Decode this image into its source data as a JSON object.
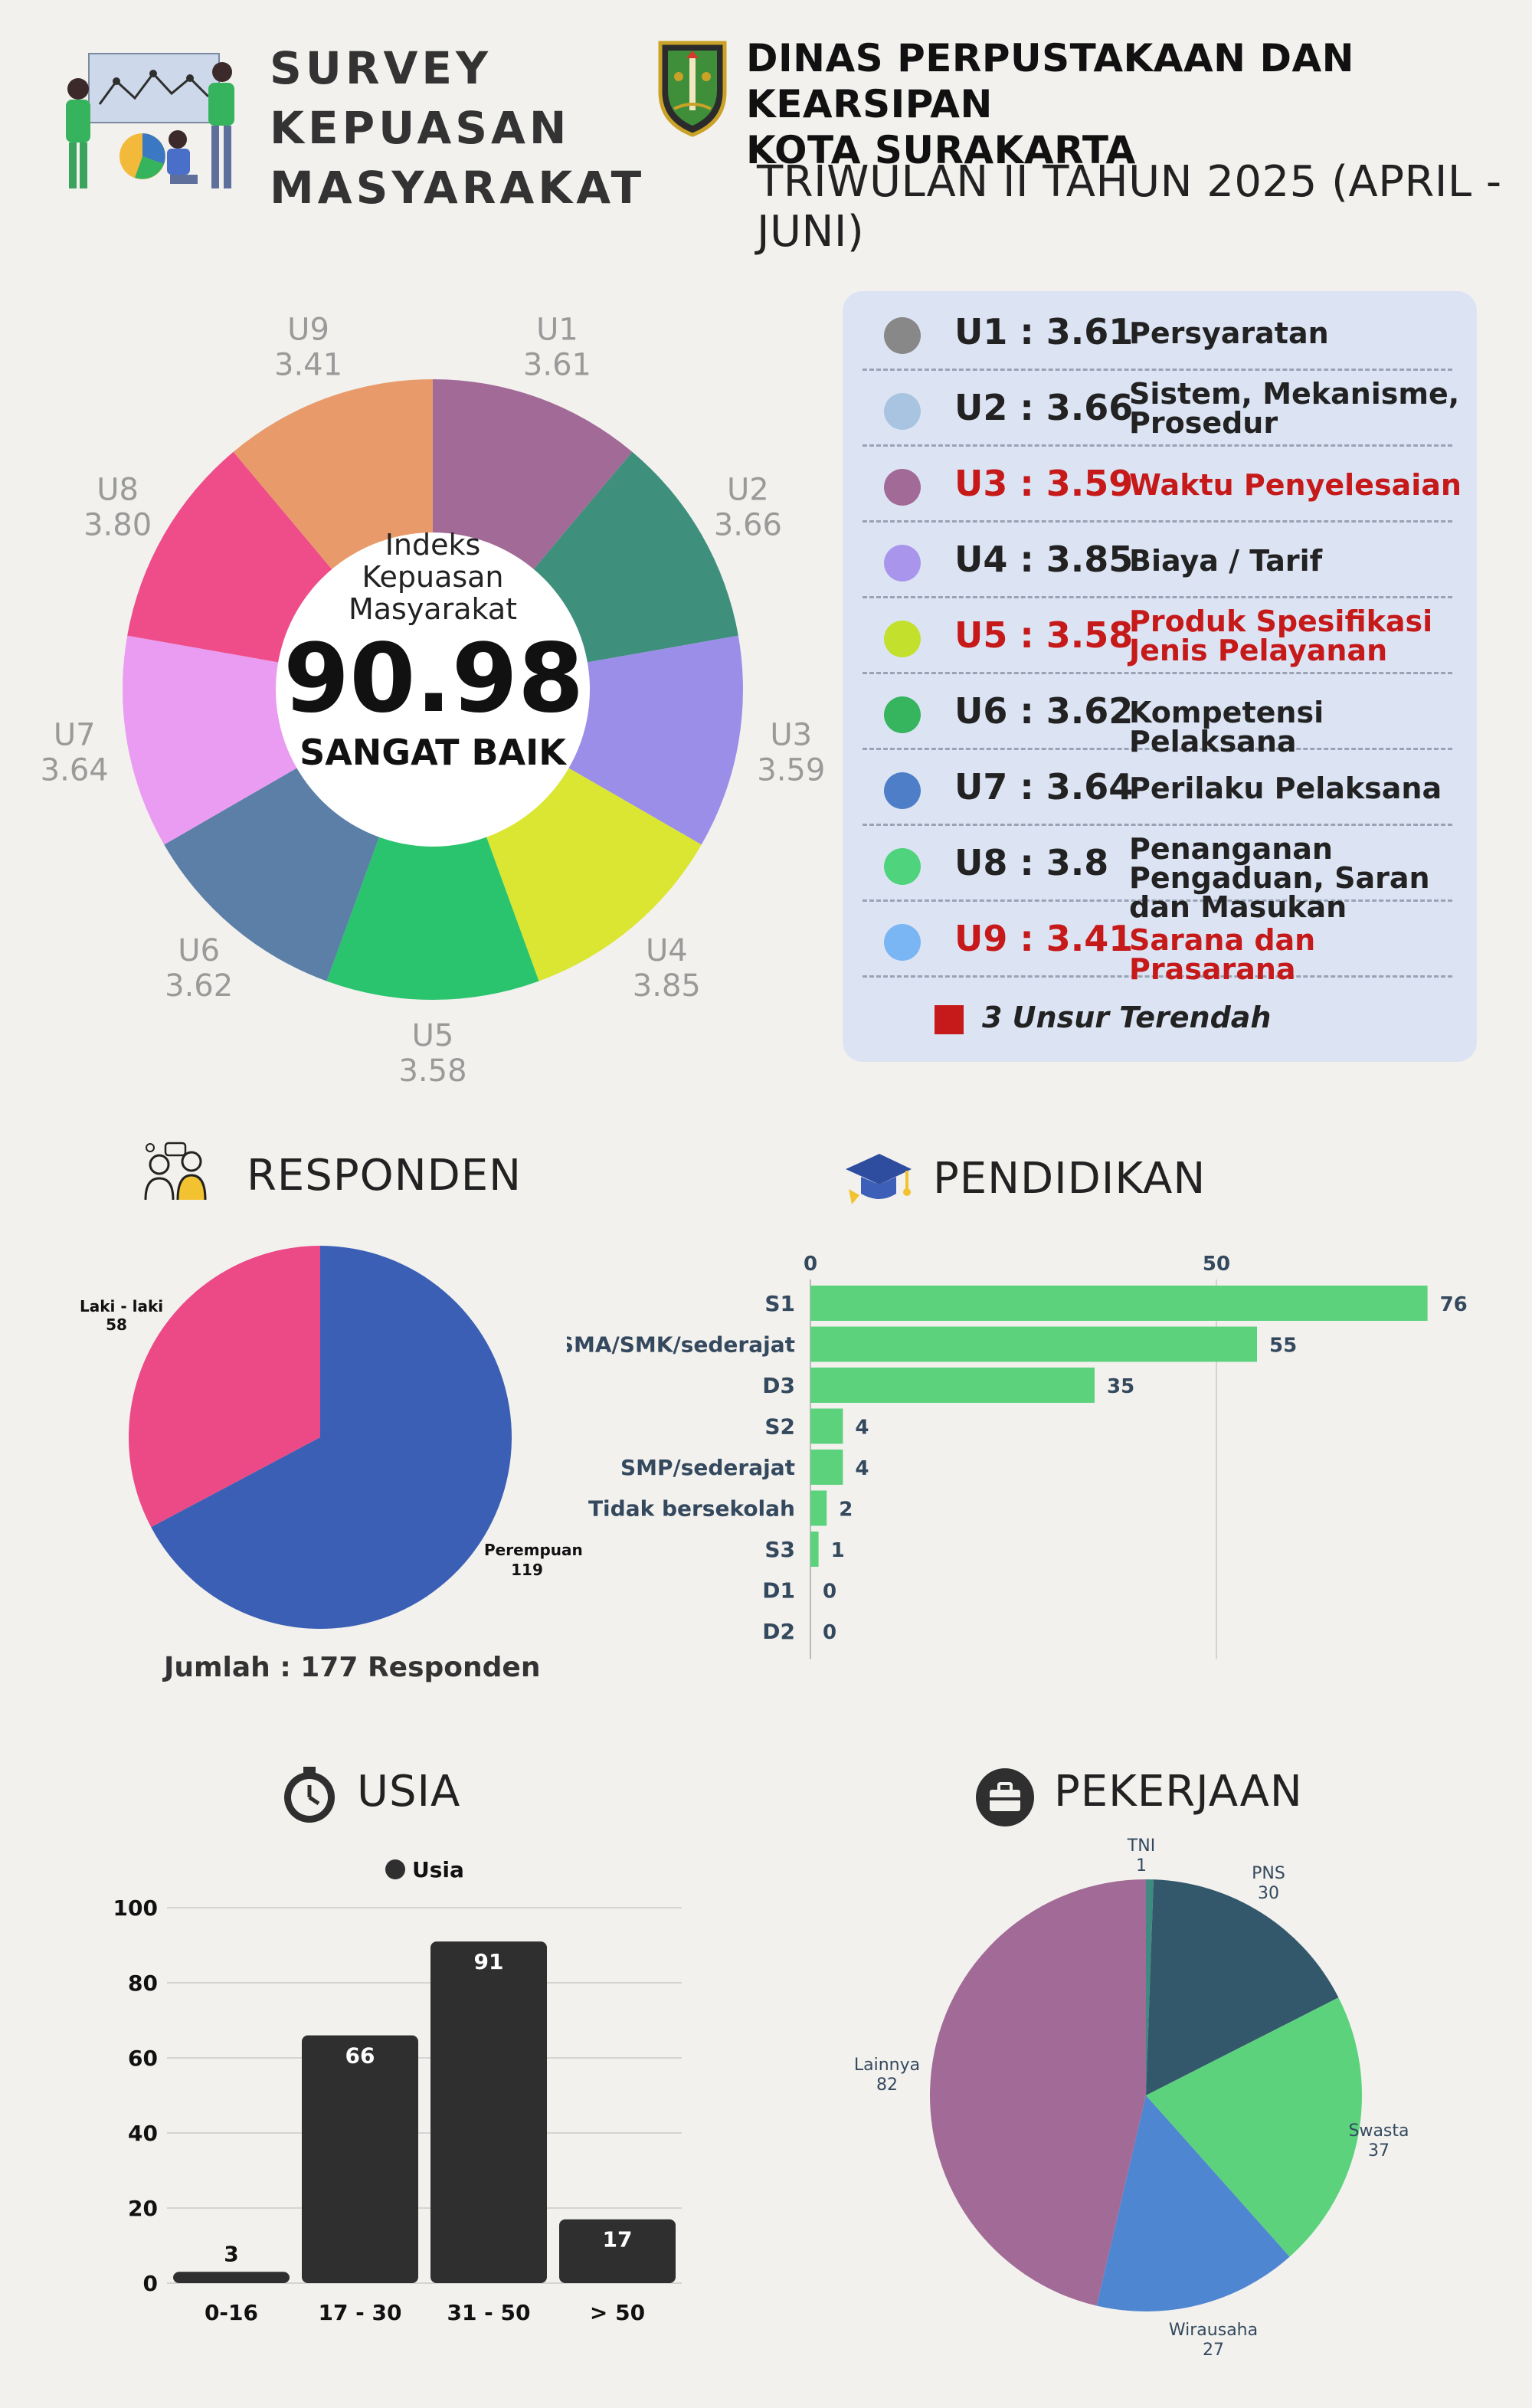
{
  "header": {
    "title_lines": [
      "SURVEY",
      "KEPUASAN",
      "MASYARAKAT"
    ],
    "agency_lines": [
      "DINAS PERPUSTAKAAN DAN KEARSIPAN",
      "KOTA SURAKARTA"
    ],
    "period": "TRIWULAN II TAHUN 2025 (APRIL - JUNI)"
  },
  "ikm": {
    "label_lines": [
      "Indeks",
      "Kepuasan",
      "Masyarakat"
    ],
    "value": "90.98",
    "grade": "SANGAT BAIK"
  },
  "elements": [
    {
      "code": "U1",
      "value": "3.61",
      "label_code": "U1 : 3.61",
      "desc": "Persyaratan",
      "color": "#a26b97",
      "legend_color": "#888888",
      "low": false
    },
    {
      "code": "U2",
      "value": "3.66",
      "label_code": "U2 : 3.66",
      "desc": "Sistem, Mekanisme, Prosedur",
      "color": "#3e8f7c",
      "legend_color": "#a9c4e0",
      "low": false
    },
    {
      "code": "U3",
      "value": "3.59",
      "label_code": "U3 : 3.59",
      "desc": "Waktu Penyelesaian",
      "color": "#9b8ee8",
      "legend_color": "#a26b97",
      "low": true
    },
    {
      "code": "U4",
      "value": "3.85",
      "label_code": "U4 : 3.85",
      "desc": "Biaya / Tarif",
      "color": "#dbe632",
      "legend_color": "#a996ec",
      "low": false
    },
    {
      "code": "U5",
      "value": "3.58",
      "label_code": "U5 : 3.58",
      "desc": "Produk Spesifikasi Jenis Pelayanan",
      "color": "#29c46d",
      "legend_color": "#c2e02c",
      "low": true
    },
    {
      "code": "U6",
      "value": "3.62",
      "label_code": "U6 : 3.62",
      "desc": "Kompetensi Pelaksana",
      "color": "#5b7fa6",
      "legend_color": "#36b45e",
      "low": false
    },
    {
      "code": "U7",
      "value": "3.64",
      "label_code": "U7 : 3.64",
      "desc": "Perilaku Pelaksana",
      "color": "#e99cf2",
      "legend_color": "#4f7ec8",
      "low": false
    },
    {
      "code": "U8",
      "value": "3.80",
      "label_code": "U8 : 3.8",
      "desc": "Penanganan Pengaduan, Saran dan Masukan",
      "color": "#ee4d8a",
      "legend_color": "#4fd37c",
      "low": false
    },
    {
      "code": "U9",
      "value": "3.41",
      "label_code": "U9 : 3.41",
      "desc": "Sarana dan Prasarana",
      "color": "#e89a6a",
      "legend_color": "#7ab5f4",
      "low": true
    }
  ],
  "legend_note": "3 Unsur Terendah",
  "responden": {
    "title": "RESPONDEN",
    "total_label": "Jumlah : 177 Responden"
  },
  "pendidikan": {
    "title": "PENDIDIKAN"
  },
  "usia": {
    "title": "USIA",
    "legend": "Usia"
  },
  "pekerjaan": {
    "title": "PEKERJAAN"
  },
  "colors": {
    "background": "#f2f1ee",
    "panel": "#dce4f4",
    "low_red": "#c61a1a",
    "bar_green": "#5cd27d",
    "bar_dark": "#2f2f2f"
  },
  "chart_data": [
    {
      "type": "pie",
      "subtype": "donut",
      "categories": [
        "U1",
        "U2",
        "U3",
        "U4",
        "U5",
        "U6",
        "U7",
        "U8",
        "U9"
      ],
      "values": [
        3.61,
        3.66,
        3.59,
        3.85,
        3.58,
        3.62,
        3.64,
        3.8,
        3.41
      ]
    },
    {
      "type": "pie",
      "categories": [
        "Perempuan",
        "Laki - laki"
      ],
      "values": [
        119,
        58
      ],
      "colors": [
        "#3a5fb5",
        "#ec4a87"
      ]
    },
    {
      "type": "bar",
      "orientation": "horizontal",
      "categories": [
        "S1",
        "SMA/SMK/sederajat",
        "D3",
        "S2",
        "SMP/sederajat",
        "Tidak bersekolah",
        "S3",
        "D1",
        "D2"
      ],
      "values": [
        76,
        55,
        35,
        4,
        4,
        2,
        1,
        0,
        0
      ],
      "xticks": [
        0,
        50
      ],
      "xlim": [
        0,
        80
      ],
      "color": "#5cd27d"
    },
    {
      "type": "bar",
      "categories": [
        "0-16",
        "17 - 30",
        "31 - 50",
        "> 50"
      ],
      "series": [
        {
          "name": "Usia",
          "values": [
            3,
            66,
            91,
            17
          ]
        }
      ],
      "yticks": [
        0,
        20,
        40,
        60,
        80,
        100
      ],
      "ylim": [
        0,
        100
      ],
      "grid": true,
      "legend": "top",
      "color": "#2f2f2f"
    },
    {
      "type": "pie",
      "categories": [
        "TNI",
        "PNS",
        "Swasta",
        "Wirausaha",
        "Lainnya"
      ],
      "values": [
        1,
        30,
        37,
        27,
        82
      ],
      "colors": [
        "#3f8a82",
        "#33576b",
        "#5cd27d",
        "#4f86d1",
        "#a26b97"
      ]
    }
  ]
}
